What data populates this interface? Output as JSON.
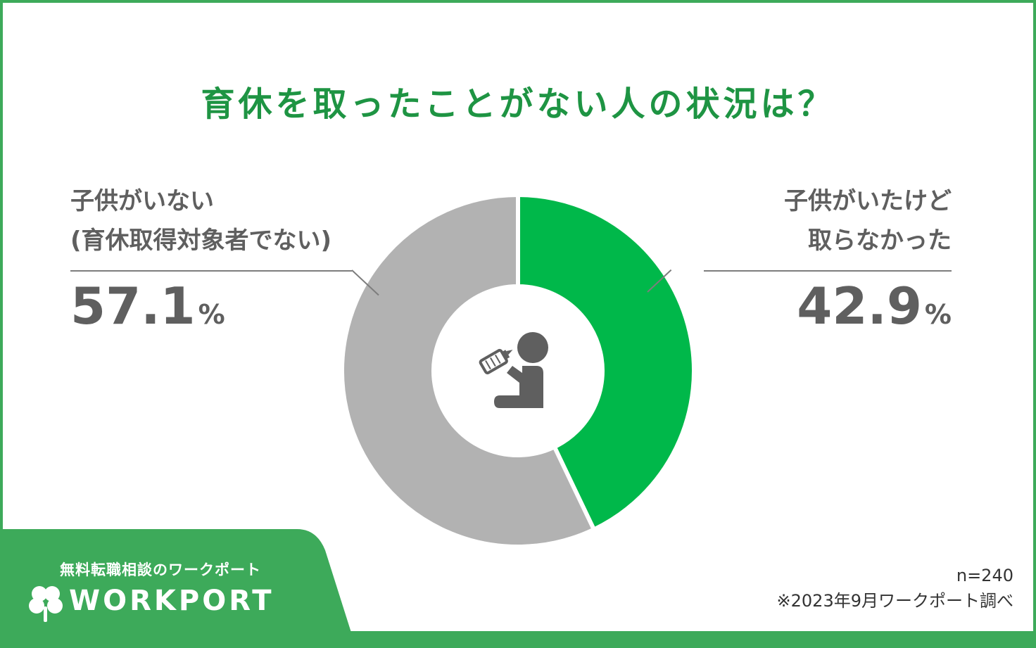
{
  "title": "育休を取ったことがない人の状況は？",
  "chart_data": {
    "type": "pie",
    "categories": [
      "子供がいたけど取らなかった",
      "子供がいない(育休取得対象者でない)"
    ],
    "values": [
      42.9,
      57.1
    ],
    "unit": "%",
    "colors": [
      "#00b84a",
      "#b2b2b2"
    ]
  },
  "labels": {
    "left": {
      "line1": "子供がいない",
      "line2": "(育休取得対象者でない)",
      "value": "57.1",
      "unit": "%"
    },
    "right": {
      "line1": "子供がいたけど",
      "line2": "取らなかった",
      "value": "42.9",
      "unit": "%"
    }
  },
  "center_icon": "baby-bottle-icon",
  "footer": {
    "tagline": "無料転職相談のワークポート",
    "logo": "WORKPORT",
    "sample": "n=240",
    "source": "※2023年9月ワークポート調べ"
  },
  "colors": {
    "brand": "#3daa5a",
    "title": "#1e9443",
    "text": "#5f5f5f"
  }
}
